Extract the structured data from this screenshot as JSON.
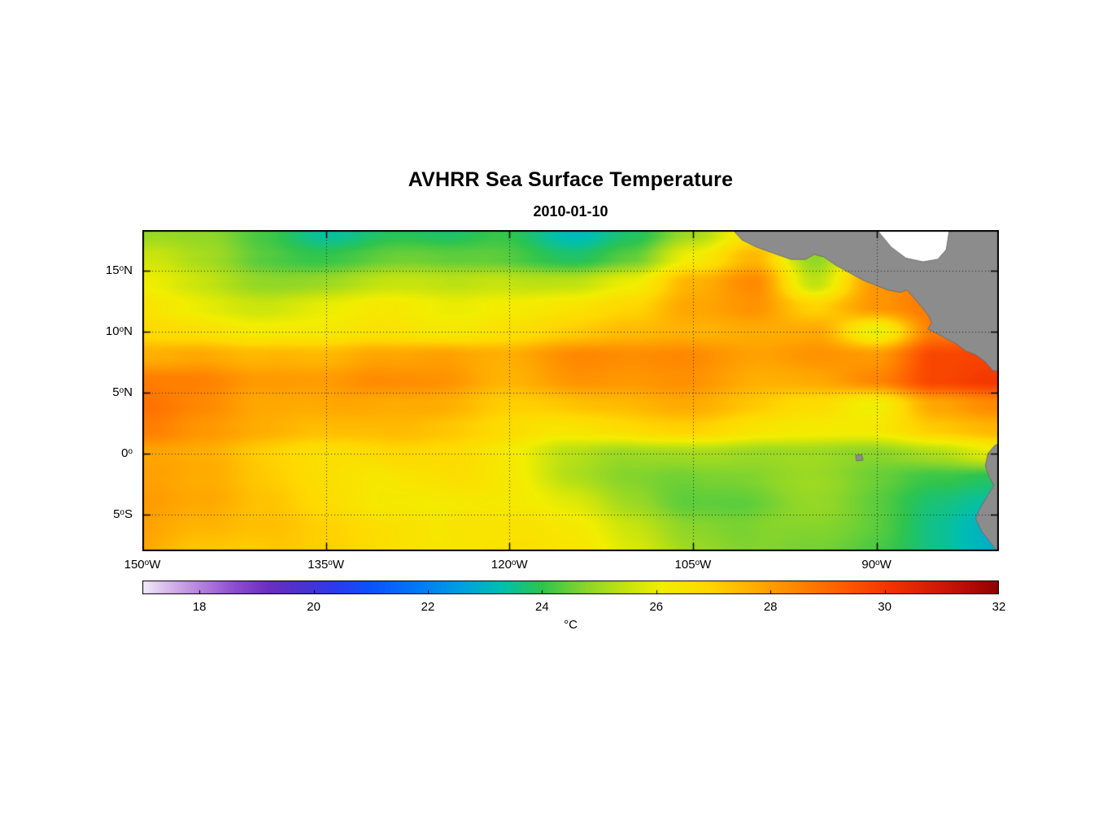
{
  "chart": {
    "title": "AVHRR Sea Surface Temperature",
    "subtitle": "2010-01-10",
    "colorbar_label": "°C"
  },
  "chart_data": {
    "type": "heatmap",
    "title": "AVHRR Sea Surface Temperature",
    "date": "2010-01-10",
    "units": "°C",
    "x_axis": {
      "ticks": [
        {
          "num": "150",
          "sup": "o",
          "suffix": "W",
          "lon": 150
        },
        {
          "num": "135",
          "sup": "o",
          "suffix": "W",
          "lon": 135
        },
        {
          "num": "120",
          "sup": "o",
          "suffix": "W",
          "lon": 120
        },
        {
          "num": "105",
          "sup": "o",
          "suffix": "W",
          "lon": 105
        },
        {
          "num": "90",
          "sup": "o",
          "suffix": "W",
          "lon": 90
        }
      ],
      "range_deg_west": [
        150,
        80
      ]
    },
    "y_axis": {
      "ticks": [
        {
          "num": "15",
          "sup": "o",
          "suffix": "N",
          "lat": 15
        },
        {
          "num": "10",
          "sup": "o",
          "suffix": "N",
          "lat": 10
        },
        {
          "num": "5",
          "sup": "o",
          "suffix": "N",
          "lat": 5
        },
        {
          "num": "0",
          "sup": "o",
          "suffix": "",
          "lat": 0
        },
        {
          "num": "5",
          "sup": "o",
          "suffix": "S",
          "lat": -5
        }
      ],
      "range_deg_north": [
        18.3,
        -8.0
      ]
    },
    "grid_lines": {
      "lon": [
        135,
        120,
        105,
        90
      ],
      "lat": [
        15,
        10,
        5,
        0,
        -5
      ]
    },
    "lon_deg_west": [
      150,
      145,
      140,
      135,
      130,
      125,
      120,
      115,
      110,
      105,
      100,
      95,
      90,
      85,
      80
    ],
    "lat_deg_north": [
      18,
      16,
      14,
      12,
      10,
      8,
      6,
      4,
      2,
      0,
      -2,
      -4,
      -6,
      -8
    ],
    "sst_grid_degC": [
      [
        24.8,
        24.4,
        23.9,
        23.4,
        23.7,
        23.4,
        23.9,
        23.5,
        24.2,
        25.2,
        26.6,
        27.0,
        27.4,
        27.5,
        27.5
      ],
      [
        25.2,
        24.7,
        24.3,
        24.1,
        24.2,
        24.0,
        24.3,
        24.2,
        24.7,
        26.2,
        27.6,
        25.0,
        27.6,
        28.0,
        28.0
      ],
      [
        25.6,
        25.3,
        25.0,
        25.0,
        25.2,
        25.1,
        25.5,
        25.6,
        26.1,
        27.6,
        28.5,
        25.5,
        28.0,
        28.5,
        28.5
      ],
      [
        26.1,
        26.0,
        25.8,
        26.0,
        26.2,
        26.0,
        26.3,
        26.5,
        26.8,
        27.8,
        28.3,
        27.0,
        28.0,
        28.6,
        28.6
      ],
      [
        26.6,
        26.8,
        26.5,
        26.3,
        26.5,
        26.5,
        26.8,
        27.0,
        27.2,
        27.5,
        27.8,
        27.8,
        25.8,
        28.6,
        29.2
      ],
      [
        27.6,
        28.1,
        27.8,
        27.5,
        27.9,
        28.3,
        28.0,
        28.3,
        28.0,
        28.2,
        28.0,
        28.3,
        28.0,
        29.6,
        29.9
      ],
      [
        28.6,
        28.8,
        28.3,
        28.0,
        28.3,
        28.5,
        28.0,
        28.2,
        27.8,
        28.0,
        27.8,
        28.0,
        28.4,
        29.5,
        30.0
      ],
      [
        28.8,
        28.5,
        28.0,
        27.8,
        27.6,
        27.8,
        27.5,
        27.5,
        27.3,
        27.5,
        27.3,
        27.0,
        26.0,
        27.5,
        28.2
      ],
      [
        28.5,
        28.0,
        27.8,
        27.5,
        27.3,
        27.1,
        27.0,
        26.8,
        26.8,
        26.8,
        26.5,
        26.5,
        26.3,
        26.8,
        27.2
      ],
      [
        27.8,
        27.4,
        27.0,
        26.8,
        26.8,
        26.5,
        26.2,
        25.6,
        25.2,
        25.0,
        24.8,
        25.0,
        24.8,
        25.0,
        25.6
      ],
      [
        28.0,
        27.5,
        27.0,
        26.8,
        26.5,
        26.4,
        26.0,
        25.3,
        25.0,
        24.7,
        24.5,
        24.7,
        24.5,
        24.2,
        23.8
      ],
      [
        28.2,
        27.8,
        27.2,
        26.8,
        26.5,
        26.2,
        25.9,
        25.6,
        25.1,
        24.6,
        24.3,
        24.5,
        24.3,
        24.0,
        23.6
      ],
      [
        28.1,
        27.8,
        27.4,
        27.0,
        26.8,
        26.5,
        26.2,
        25.9,
        25.4,
        24.9,
        24.6,
        24.4,
        24.3,
        23.9,
        23.4
      ],
      [
        28.0,
        27.6,
        27.3,
        27.0,
        26.8,
        26.6,
        26.4,
        26.0,
        25.5,
        25.0,
        24.7,
        24.4,
        24.2,
        23.9,
        23.4
      ]
    ],
    "colorbar": {
      "range": [
        17,
        32
      ],
      "ticks": [
        18,
        20,
        22,
        24,
        26,
        28,
        30,
        32
      ],
      "stops": [
        {
          "t": 17.0,
          "color": "#f2ecf9"
        },
        {
          "t": 17.4,
          "color": "#d9bdeb"
        },
        {
          "t": 18.0,
          "color": "#b683dd"
        },
        {
          "t": 18.6,
          "color": "#8f4ecf"
        },
        {
          "t": 19.2,
          "color": "#6b2fc0"
        },
        {
          "t": 19.8,
          "color": "#4b31cf"
        },
        {
          "t": 20.4,
          "color": "#2b3bef"
        },
        {
          "t": 21.0,
          "color": "#0c52ff"
        },
        {
          "t": 21.8,
          "color": "#0078f8"
        },
        {
          "t": 22.6,
          "color": "#00a0e0"
        },
        {
          "t": 23.3,
          "color": "#00bfae"
        },
        {
          "t": 24.0,
          "color": "#2ec44e"
        },
        {
          "t": 24.8,
          "color": "#8ed629"
        },
        {
          "t": 25.5,
          "color": "#c8e40e"
        },
        {
          "t": 26.1,
          "color": "#f2ee00"
        },
        {
          "t": 26.9,
          "color": "#ffd800"
        },
        {
          "t": 27.7,
          "color": "#ffae00"
        },
        {
          "t": 28.5,
          "color": "#ff8400"
        },
        {
          "t": 29.3,
          "color": "#ff5a00"
        },
        {
          "t": 30.1,
          "color": "#f23300"
        },
        {
          "t": 30.9,
          "color": "#d41a08"
        },
        {
          "t": 31.5,
          "color": "#b30b06"
        },
        {
          "t": 32.0,
          "color": "#8e0000"
        }
      ]
    },
    "land_color": "#8c8c8c",
    "land_edge_color": "#6e6e6e",
    "no_data_color": "#ffffff",
    "land_polygons": {
      "mexico_central_america": [
        [
          102.0,
          18.6
        ],
        [
          101.0,
          17.5
        ],
        [
          99.8,
          16.9
        ],
        [
          98.4,
          16.4
        ],
        [
          97.0,
          15.9
        ],
        [
          95.8,
          15.9
        ],
        [
          95.1,
          16.3
        ],
        [
          94.3,
          16.1
        ],
        [
          93.3,
          15.4
        ],
        [
          92.2,
          14.8
        ],
        [
          91.1,
          14.2
        ],
        [
          90.1,
          13.8
        ],
        [
          89.1,
          13.4
        ],
        [
          88.1,
          13.2
        ],
        [
          87.5,
          13.4
        ],
        [
          87.0,
          12.8
        ],
        [
          86.3,
          12.0
        ],
        [
          85.7,
          11.2
        ],
        [
          85.5,
          10.7
        ],
        [
          85.8,
          10.2
        ],
        [
          85.0,
          9.8
        ],
        [
          84.3,
          9.4
        ],
        [
          83.5,
          9.0
        ],
        [
          82.7,
          8.4
        ],
        [
          81.9,
          8.1
        ],
        [
          81.1,
          7.5
        ],
        [
          80.5,
          6.8
        ],
        [
          78.8,
          6.6
        ],
        [
          78.8,
          18.6
        ]
      ],
      "caribbean_mask": [
        [
          90.2,
          18.6
        ],
        [
          88.8,
          16.9
        ],
        [
          87.6,
          16.0
        ],
        [
          86.2,
          15.7
        ],
        [
          85.0,
          15.9
        ],
        [
          84.3,
          16.7
        ],
        [
          84.0,
          18.6
        ]
      ],
      "south_america": [
        [
          78.8,
          0.9
        ],
        [
          80.3,
          0.7
        ],
        [
          80.9,
          0.0
        ],
        [
          81.1,
          -1.0
        ],
        [
          80.8,
          -1.9
        ],
        [
          80.4,
          -2.6
        ],
        [
          80.9,
          -3.4
        ],
        [
          81.5,
          -4.4
        ],
        [
          81.9,
          -5.3
        ],
        [
          81.4,
          -6.4
        ],
        [
          80.6,
          -7.4
        ],
        [
          79.9,
          -8.4
        ],
        [
          78.8,
          -8.4
        ]
      ],
      "galapagos": [
        [
          91.7,
          -0.15
        ],
        [
          91.2,
          -0.1
        ],
        [
          91.1,
          -0.55
        ],
        [
          91.65,
          -0.6
        ]
      ]
    }
  }
}
